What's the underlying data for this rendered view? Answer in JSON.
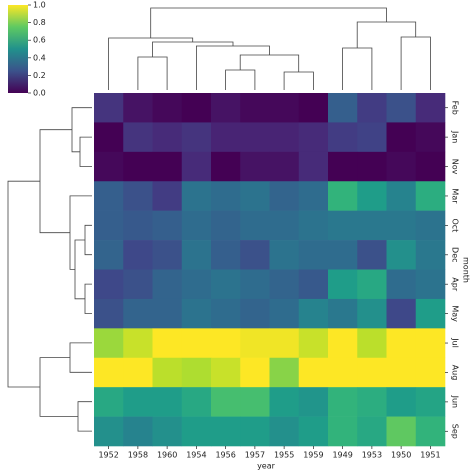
{
  "chart_data": {
    "type": "heatmap",
    "x": [
      "1952",
      "1958",
      "1960",
      "1954",
      "1956",
      "1957",
      "1955",
      "1959",
      "1949",
      "1953",
      "1950",
      "1951"
    ],
    "y": [
      "Feb",
      "Jan",
      "Nov",
      "Mar",
      "Oct",
      "Dec",
      "Apr",
      "May",
      "Jul",
      "Aug",
      "Jun",
      "Sep"
    ],
    "xlabel": "year",
    "ylabel": "month",
    "values": [
      [
        0.15,
        0.05,
        0.02,
        0.0,
        0.05,
        0.02,
        0.02,
        0.0,
        0.3,
        0.18,
        0.25,
        0.12
      ],
      [
        0.0,
        0.15,
        0.12,
        0.15,
        0.1,
        0.1,
        0.1,
        0.12,
        0.18,
        0.2,
        0.0,
        0.02
      ],
      [
        0.02,
        0.0,
        0.0,
        0.12,
        0.0,
        0.05,
        0.05,
        0.12,
        0.0,
        0.0,
        0.02,
        0.0
      ],
      [
        0.3,
        0.25,
        0.18,
        0.38,
        0.35,
        0.38,
        0.32,
        0.35,
        0.65,
        0.55,
        0.45,
        0.62
      ],
      [
        0.3,
        0.28,
        0.3,
        0.35,
        0.32,
        0.35,
        0.35,
        0.38,
        0.4,
        0.4,
        0.4,
        0.38
      ],
      [
        0.32,
        0.22,
        0.25,
        0.38,
        0.3,
        0.25,
        0.38,
        0.35,
        0.35,
        0.25,
        0.5,
        0.4
      ],
      [
        0.22,
        0.25,
        0.32,
        0.35,
        0.38,
        0.35,
        0.32,
        0.28,
        0.55,
        0.6,
        0.35,
        0.38
      ],
      [
        0.25,
        0.32,
        0.32,
        0.38,
        0.35,
        0.32,
        0.35,
        0.45,
        0.4,
        0.5,
        0.22,
        0.55
      ],
      [
        0.85,
        0.92,
        1.0,
        1.0,
        1.0,
        0.98,
        0.98,
        0.92,
        1.0,
        0.9,
        1.0,
        1.0
      ],
      [
        1.0,
        1.0,
        0.9,
        0.88,
        0.92,
        1.0,
        0.82,
        1.0,
        1.0,
        1.0,
        1.0,
        1.0
      ],
      [
        0.6,
        0.55,
        0.55,
        0.6,
        0.7,
        0.7,
        0.55,
        0.52,
        0.65,
        0.62,
        0.55,
        0.58
      ],
      [
        0.5,
        0.45,
        0.5,
        0.55,
        0.55,
        0.55,
        0.5,
        0.55,
        0.65,
        0.6,
        0.75,
        0.65
      ]
    ],
    "colormap": "viridis",
    "clim": [
      0,
      1
    ],
    "cticks": [
      {
        "value": 0,
        "label": "0.0"
      },
      0.2,
      0.4,
      0.6,
      0.8,
      {
        "value": 1,
        "label": "1.0"
      }
    ]
  }
}
